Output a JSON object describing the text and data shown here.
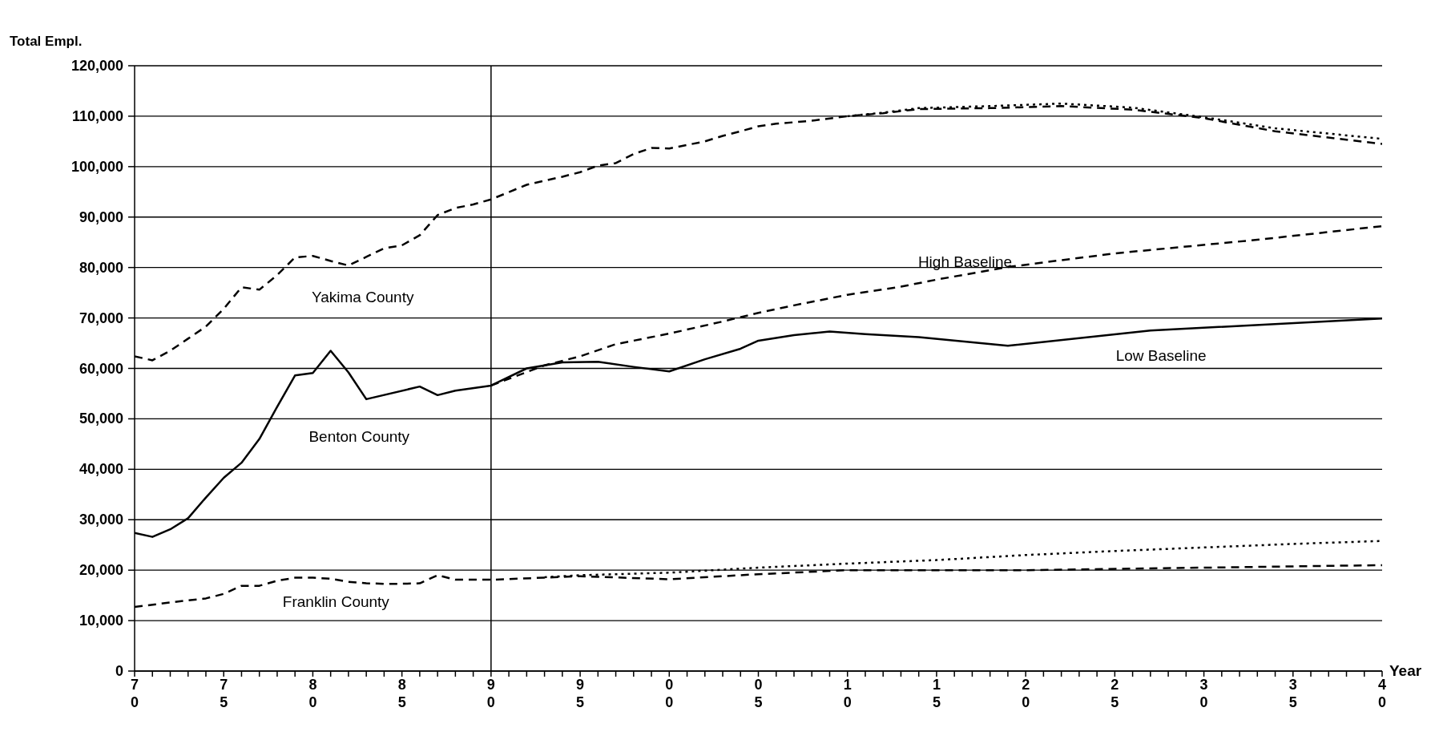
{
  "chart_data": {
    "type": "line",
    "ylabel": "Total Empl.",
    "xlabel": "Year",
    "grid": "y",
    "xlim": [
      1970,
      2040
    ],
    "xticks": [
      {
        "value": 1970,
        "label": "70"
      },
      {
        "value": 1971,
        "label": null
      },
      {
        "value": 1972,
        "label": null
      },
      {
        "value": 1973,
        "label": null
      },
      {
        "value": 1974,
        "label": null
      },
      {
        "value": 1975,
        "label": "75"
      },
      {
        "value": 1976,
        "label": null
      },
      {
        "value": 1977,
        "label": null
      },
      {
        "value": 1978,
        "label": null
      },
      {
        "value": 1979,
        "label": null
      },
      {
        "value": 1980,
        "label": "80"
      },
      {
        "value": 1981,
        "label": null
      },
      {
        "value": 1982,
        "label": null
      },
      {
        "value": 1983,
        "label": null
      },
      {
        "value": 1984,
        "label": null
      },
      {
        "value": 1985,
        "label": "85"
      },
      {
        "value": 1986,
        "label": null
      },
      {
        "value": 1987,
        "label": null
      },
      {
        "value": 1988,
        "label": null
      },
      {
        "value": 1989,
        "label": null
      },
      {
        "value": 1990,
        "label": "90"
      },
      {
        "value": 1991,
        "label": null
      },
      {
        "value": 1992,
        "label": null
      },
      {
        "value": 1993,
        "label": null
      },
      {
        "value": 1994,
        "label": null
      },
      {
        "value": 1995,
        "label": "95"
      },
      {
        "value": 1996,
        "label": null
      },
      {
        "value": 1997,
        "label": null
      },
      {
        "value": 1998,
        "label": null
      },
      {
        "value": 1999,
        "label": null
      },
      {
        "value": 2000,
        "label": "00"
      },
      {
        "value": 2001,
        "label": null
      },
      {
        "value": 2002,
        "label": null
      },
      {
        "value": 2003,
        "label": null
      },
      {
        "value": 2004,
        "label": null
      },
      {
        "value": 2005,
        "label": "05"
      },
      {
        "value": 2006,
        "label": null
      },
      {
        "value": 2007,
        "label": null
      },
      {
        "value": 2008,
        "label": null
      },
      {
        "value": 2009,
        "label": null
      },
      {
        "value": 2010,
        "label": "10"
      },
      {
        "value": 2011,
        "label": null
      },
      {
        "value": 2012,
        "label": null
      },
      {
        "value": 2013,
        "label": null
      },
      {
        "value": 2014,
        "label": null
      },
      {
        "value": 2015,
        "label": "15"
      },
      {
        "value": 2016,
        "label": null
      },
      {
        "value": 2017,
        "label": null
      },
      {
        "value": 2018,
        "label": null
      },
      {
        "value": 2019,
        "label": null
      },
      {
        "value": 2020,
        "label": "20"
      },
      {
        "value": 2021,
        "label": null
      },
      {
        "value": 2022,
        "label": null
      },
      {
        "value": 2023,
        "label": null
      },
      {
        "value": 2024,
        "label": null
      },
      {
        "value": 2025,
        "label": "25"
      },
      {
        "value": 2026,
        "label": null
      },
      {
        "value": 2027,
        "label": null
      },
      {
        "value": 2028,
        "label": null
      },
      {
        "value": 2029,
        "label": null
      },
      {
        "value": 2030,
        "label": "30"
      },
      {
        "value": 2031,
        "label": null
      },
      {
        "value": 2032,
        "label": null
      },
      {
        "value": 2033,
        "label": null
      },
      {
        "value": 2034,
        "label": null
      },
      {
        "value": 2035,
        "label": "35"
      },
      {
        "value": 2036,
        "label": null
      },
      {
        "value": 2037,
        "label": null
      },
      {
        "value": 2038,
        "label": null
      },
      {
        "value": 2039,
        "label": null
      },
      {
        "value": 2040,
        "label": "40"
      }
    ],
    "ylim": [
      0,
      120000
    ],
    "yticks": [
      {
        "value": 0,
        "label": "0"
      },
      {
        "value": 10000,
        "label": "10,000"
      },
      {
        "value": 20000,
        "label": "20,000"
      },
      {
        "value": 30000,
        "label": "30,000"
      },
      {
        "value": 40000,
        "label": "40,000"
      },
      {
        "value": 50000,
        "label": "50,000"
      },
      {
        "value": 60000,
        "label": "60,000"
      },
      {
        "value": 70000,
        "label": "70,000"
      },
      {
        "value": 80000,
        "label": "80,000"
      },
      {
        "value": 90000,
        "label": "90,000"
      },
      {
        "value": 100000,
        "label": "100,000"
      },
      {
        "value": 110000,
        "label": "110,000"
      },
      {
        "value": 120000,
        "label": "120,000"
      }
    ],
    "ref_lines": [
      {
        "axis": "x",
        "value": 1990,
        "color": "#000000"
      }
    ],
    "annotations": [
      "Yakima County",
      "Benton County",
      "Franklin County",
      "High Baseline",
      "Low Baseline"
    ],
    "series": [
      {
        "color": "#000000",
        "line_style": "dashed",
        "x": [
          1970,
          1971,
          1972,
          1973,
          1974,
          1975,
          1976,
          1977,
          1978,
          1979,
          1980,
          1981,
          1982,
          1983,
          1984,
          1985,
          1986,
          1987,
          1988,
          1989,
          1990,
          1992,
          1994,
          1995,
          1996,
          1997,
          1998,
          1999,
          2000,
          2001,
          2002,
          2003,
          2004,
          2005,
          2006,
          2008,
          2010,
          2012,
          2014,
          2018,
          2022,
          2026,
          2030,
          2034,
          2040
        ],
        "values": [
          62400,
          61600,
          63500,
          65900,
          68300,
          71800,
          76100,
          75600,
          78500,
          82000,
          82300,
          81300,
          80400,
          82100,
          83800,
          84400,
          86400,
          90400,
          91800,
          92500,
          93500,
          96400,
          98000,
          98900,
          100200,
          100700,
          102500,
          103700,
          103600,
          104300,
          105000,
          106100,
          107000,
          108000,
          108500,
          109100,
          110000,
          110600,
          111400,
          111600,
          112000,
          111300,
          109600,
          107000,
          104500
        ]
      },
      {
        "color": "#000000",
        "line_style": "dotted",
        "x": [
          2010,
          2012,
          2014,
          2018,
          2022,
          2026,
          2030,
          2034,
          2040
        ],
        "values": [
          110000,
          110700,
          111600,
          112000,
          112500,
          111700,
          109800,
          107600,
          105500
        ]
      },
      {
        "color": "#000000",
        "line_style": "solid",
        "x": [
          1970,
          1971,
          1972,
          1973,
          1974,
          1975,
          1976,
          1977,
          1978,
          1979,
          1980,
          1981,
          1982,
          1983,
          1986,
          1987,
          1988,
          1990,
          1992,
          1994,
          1996,
          1998,
          2000,
          2002,
          2004,
          2005,
          2007,
          2009,
          2011,
          2014,
          2019,
          2027,
          2040
        ],
        "values": [
          27400,
          26600,
          28100,
          30300,
          34400,
          38300,
          41300,
          46000,
          52400,
          58600,
          59100,
          63500,
          59200,
          53900,
          56400,
          54700,
          55600,
          56600,
          60000,
          61200,
          61300,
          60300,
          59400,
          61800,
          63900,
          65500,
          66600,
          67300,
          66800,
          66200,
          64500,
          67500,
          69900
        ]
      },
      {
        "color": "#000000",
        "line_style": "dashed",
        "x": [
          1990,
          1993,
          1995,
          1997,
          2000,
          2003,
          2005,
          2007,
          2010,
          2013,
          2015,
          2019,
          2025,
          2033,
          2040
        ],
        "values": [
          56600,
          60600,
          62400,
          64800,
          66900,
          69300,
          71000,
          72500,
          74600,
          76200,
          77600,
          80100,
          82800,
          85500,
          88200
        ]
      },
      {
        "color": "#000000",
        "line_style": "dashed",
        "x": [
          1970,
          1972,
          1974,
          1975,
          1976,
          1977,
          1978,
          1979,
          1980,
          1981,
          1982,
          1983,
          1984,
          1985,
          1986,
          1987,
          1988,
          1989,
          1990,
          1995,
          2000,
          2005,
          2010,
          2020,
          2030,
          2040
        ],
        "values": [
          12700,
          13600,
          14400,
          15300,
          16900,
          16900,
          17900,
          18500,
          18500,
          18300,
          17700,
          17400,
          17300,
          17300,
          17400,
          19000,
          18100,
          18100,
          18100,
          18800,
          18200,
          19200,
          20000,
          20000,
          20500,
          21000
        ]
      },
      {
        "color": "#000000",
        "line_style": "dotted",
        "x": [
          1993,
          1995,
          2000,
          2005,
          2010,
          2015,
          2020,
          2025,
          2030,
          2035,
          2040
        ],
        "values": [
          18600,
          19000,
          19500,
          20500,
          21300,
          22000,
          23000,
          23800,
          24500,
          25200,
          25800
        ]
      }
    ]
  }
}
